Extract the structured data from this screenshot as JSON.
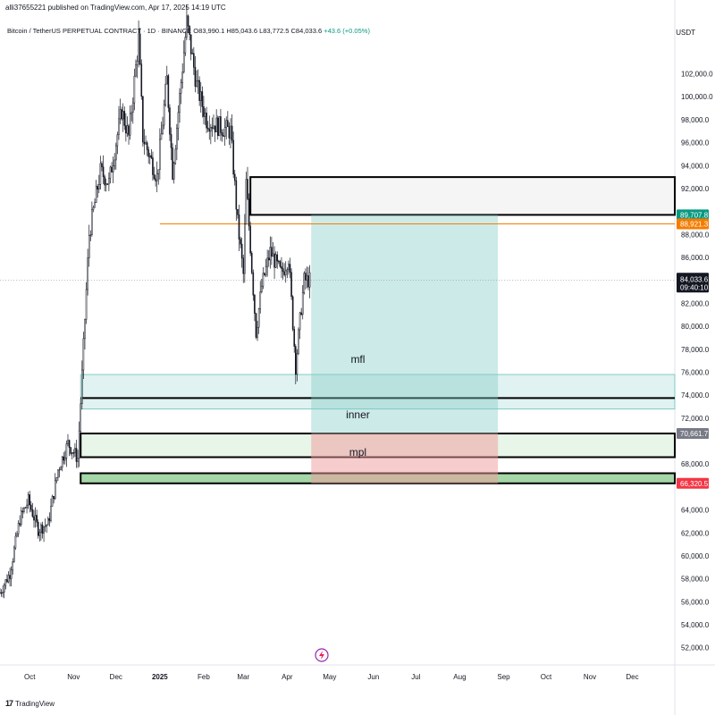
{
  "header": {
    "published": "alli37655221 published on TradingView.com, Apr 17, 2025 14:19 UTC",
    "symbol": "Bitcoin / TetherUS PERPETUAL CONTRACT · 1D · BINANCE",
    "ohlc": "O83,990.1  H85,043.6  L83,772.5  C84,033.6",
    "change": "+43.6 (+0.05%)",
    "currency": "USDT"
  },
  "footer": {
    "brand": "TradingView",
    "logo": "17"
  },
  "price_tags": [
    {
      "text": "89,707.8",
      "value": 89707.8,
      "color": "#089981"
    },
    {
      "text": "88,921.3",
      "value": 88921.3,
      "color": "#f57c00"
    },
    {
      "text": "70,661.7",
      "value": 70661.7,
      "color": "#787b86"
    },
    {
      "text": "66,320.5",
      "value": 66320.5,
      "color": "#f23645"
    }
  ],
  "last_price": {
    "text": "84,033.6",
    "countdown": "09:40:10",
    "value": 84033.6
  },
  "chart_data": {
    "type": "candlestick",
    "ylim": [
      50500,
      105000
    ],
    "yticks": [
      {
        "v": 52000,
        "t": "52,000.0"
      },
      {
        "v": 54000,
        "t": "54,000.0"
      },
      {
        "v": 56000,
        "t": "56,000.0"
      },
      {
        "v": 58000,
        "t": "58,000.0"
      },
      {
        "v": 60000,
        "t": "60,000.0"
      },
      {
        "v": 62000,
        "t": "62,000.0"
      },
      {
        "v": 64000,
        "t": "64,000.0"
      },
      {
        "v": 68000,
        "t": "68,000.0"
      },
      {
        "v": 72000,
        "t": "72,000.0"
      },
      {
        "v": 74000,
        "t": "74,000.0"
      },
      {
        "v": 76000,
        "t": "76,000.0"
      },
      {
        "v": 78000,
        "t": "78,000.0"
      },
      {
        "v": 80000,
        "t": "80,000.0"
      },
      {
        "v": 82000,
        "t": "82,000.0"
      },
      {
        "v": 86000,
        "t": "86,000.0"
      },
      {
        "v": 88000,
        "t": "88,000.0"
      },
      {
        "v": 92000,
        "t": "92,000.0"
      },
      {
        "v": 94000,
        "t": "94,000.0"
      },
      {
        "v": 96000,
        "t": "96,000.0"
      },
      {
        "v": 98000,
        "t": "98,000.0"
      },
      {
        "v": 100000,
        "t": "100,000.0"
      },
      {
        "v": 102000,
        "t": "102,000.0"
      }
    ],
    "x_start": "2024-09-10",
    "x_end": "2025-12-31",
    "xticks": [
      {
        "d": "2024-10-01",
        "t": "Oct"
      },
      {
        "d": "2024-11-01",
        "t": "Nov"
      },
      {
        "d": "2024-12-01",
        "t": "Dec"
      },
      {
        "d": "2025-01-01",
        "t": "2025"
      },
      {
        "d": "2025-02-01",
        "t": "Feb"
      },
      {
        "d": "2025-03-01",
        "t": "Mar"
      },
      {
        "d": "2025-04-01",
        "t": "Apr"
      },
      {
        "d": "2025-05-01",
        "t": "May"
      },
      {
        "d": "2025-06-01",
        "t": "Jun"
      },
      {
        "d": "2025-07-01",
        "t": "Jul"
      },
      {
        "d": "2025-08-01",
        "t": "Aug"
      },
      {
        "d": "2025-09-01",
        "t": "Sep"
      },
      {
        "d": "2025-10-01",
        "t": "Oct"
      },
      {
        "d": "2025-11-01",
        "t": "Nov"
      },
      {
        "d": "2025-12-01",
        "t": "Dec"
      }
    ],
    "price_path": [
      [
        "2024-09-10",
        56800
      ],
      [
        "2024-09-17",
        58500
      ],
      [
        "2024-09-24",
        63200
      ],
      [
        "2024-09-30",
        64800
      ],
      [
        "2024-10-07",
        62300
      ],
      [
        "2024-10-14",
        62800
      ],
      [
        "2024-10-21",
        67500
      ],
      [
        "2024-10-28",
        69800
      ],
      [
        "2024-11-04",
        68500
      ],
      [
        "2024-11-07",
        75800
      ],
      [
        "2024-11-12",
        88000
      ],
      [
        "2024-11-20",
        93500
      ],
      [
        "2024-11-26",
        92500
      ],
      [
        "2024-12-05",
        98800
      ],
      [
        "2024-12-10",
        96500
      ],
      [
        "2024-12-17",
        105000
      ],
      [
        "2024-12-20",
        96500
      ],
      [
        "2024-12-30",
        93000
      ],
      [
        "2025-01-06",
        101500
      ],
      [
        "2025-01-10",
        93500
      ],
      [
        "2025-01-20",
        106500
      ],
      [
        "2025-01-27",
        101000
      ],
      [
        "2025-02-03",
        98000
      ],
      [
        "2025-02-10",
        97500
      ],
      [
        "2025-02-20",
        97000
      ],
      [
        "2025-02-25",
        89000
      ],
      [
        "2025-03-01",
        84500
      ],
      [
        "2025-03-03",
        92500
      ],
      [
        "2025-03-10",
        79500
      ],
      [
        "2025-03-14",
        83500
      ],
      [
        "2025-03-20",
        86500
      ],
      [
        "2025-03-28",
        84500
      ],
      [
        "2025-04-02",
        86000
      ],
      [
        "2025-04-07",
        76500
      ],
      [
        "2025-04-10",
        80500
      ],
      [
        "2025-04-13",
        84000
      ],
      [
        "2025-04-17",
        84033.6
      ]
    ],
    "zones": [
      {
        "name": "upper-box",
        "from": "2025-03-06",
        "to": "2025-12-31",
        "low": 89707.8,
        "high": 93000,
        "fill": "#f5f5f5",
        "stroke": "#000000"
      },
      {
        "name": "mfl-zone",
        "from": "2024-11-06",
        "to": "2025-12-31",
        "low": 72800,
        "high": 75800,
        "fill": "#e0f2f1",
        "stroke": "#80cbc4"
      },
      {
        "name": "inner-line",
        "from": "2024-11-06",
        "to": "2025-12-31",
        "low": 73750,
        "high": 73750,
        "fill": "none",
        "stroke": "#000000"
      },
      {
        "name": "mpl-zone",
        "from": "2024-11-06",
        "to": "2025-12-31",
        "low": 68600,
        "high": 70661.7,
        "fill": "#e8f5e9",
        "stroke": "#000000"
      },
      {
        "name": "lower-box",
        "from": "2024-11-06",
        "to": "2025-12-31",
        "low": 66320.5,
        "high": 67200,
        "fill": "#a5d6a7",
        "stroke": "#000000"
      },
      {
        "name": "target-zone",
        "from": "2025-04-18",
        "to": "2025-08-28",
        "low": 70661.7,
        "high": 89707.8,
        "fill": "rgba(128,203,196,0.4)",
        "stroke": "none"
      },
      {
        "name": "stop-zone",
        "from": "2025-04-18",
        "to": "2025-08-28",
        "low": 66320.5,
        "high": 70661.7,
        "fill": "rgba(239,154,154,0.5)",
        "stroke": "none"
      }
    ],
    "hlines": [
      {
        "name": "orange-level",
        "from": "2025-01-01",
        "to": "2025-12-31",
        "value": 88921.3,
        "color": "#f57c00"
      }
    ],
    "annotations": [
      {
        "text": "mfl",
        "date": "2025-05-21",
        "value": 76800
      },
      {
        "text": "inner",
        "date": "2025-05-21",
        "value": 72000
      },
      {
        "text": "mpl",
        "date": "2025-05-21",
        "value": 68700
      }
    ]
  }
}
